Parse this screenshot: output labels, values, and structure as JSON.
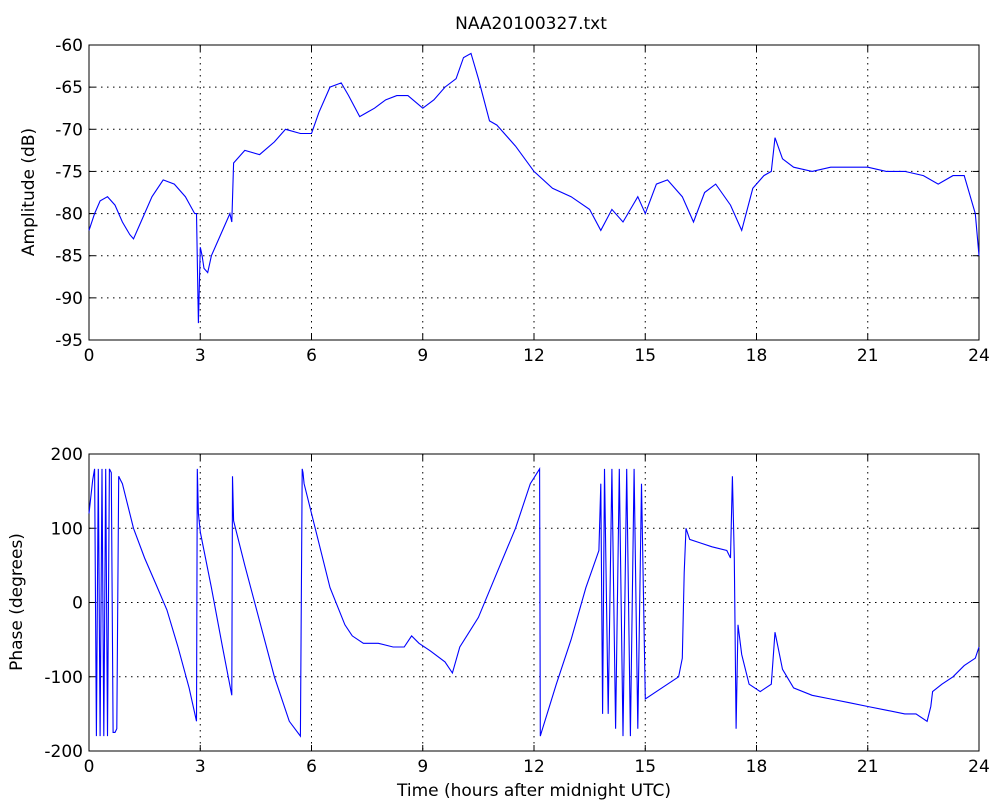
{
  "title": "NAA20100327.txt",
  "chart_data": [
    {
      "type": "line",
      "title": "NAA20100327.txt",
      "xlabel": "",
      "ylabel": "Amplitude (dB)",
      "xlim": [
        0,
        24
      ],
      "ylim": [
        -95,
        -60
      ],
      "xticks": [
        0,
        3,
        6,
        9,
        12,
        15,
        18,
        21,
        24
      ],
      "yticks": [
        -95,
        -90,
        -85,
        -80,
        -75,
        -70,
        -65,
        -60
      ],
      "grid": true,
      "series": [
        {
          "color": "#0000ff",
          "x": [
            0,
            0.15,
            0.3,
            0.5,
            0.7,
            0.9,
            1.1,
            1.2,
            1.4,
            1.7,
            2.0,
            2.3,
            2.6,
            2.85,
            2.9,
            2.95,
            3.0,
            3.05,
            3.1,
            3.2,
            3.3,
            3.5,
            3.8,
            3.85,
            3.9,
            4.2,
            4.6,
            5.0,
            5.3,
            5.7,
            6.0,
            6.2,
            6.5,
            6.8,
            7.0,
            7.3,
            7.5,
            7.7,
            8.0,
            8.3,
            8.6,
            9.0,
            9.3,
            9.6,
            9.9,
            10.1,
            10.3,
            10.5,
            10.8,
            11.0,
            11.5,
            12.0,
            12.5,
            13.0,
            13.5,
            13.8,
            14.1,
            14.4,
            14.8,
            15.0,
            15.3,
            15.6,
            16.0,
            16.3,
            16.6,
            16.9,
            17.3,
            17.6,
            17.9,
            18.2,
            18.4,
            18.5,
            18.7,
            19.0,
            19.5,
            20.0,
            20.5,
            21.0,
            21.5,
            22.0,
            22.5,
            22.9,
            23.3,
            23.6,
            23.9,
            24.0
          ],
          "y": [
            -82,
            -80,
            -78.5,
            -78,
            -79,
            -81,
            -82.5,
            -83,
            -81,
            -78,
            -76,
            -76.5,
            -78,
            -80,
            -80,
            -93,
            -84,
            -85,
            -86.5,
            -87,
            -85,
            -83,
            -80,
            -81,
            -74,
            -72.5,
            -73,
            -71.5,
            -70,
            -70.5,
            -70.5,
            -68,
            -65,
            -64.5,
            -66,
            -68.5,
            -68,
            -67.5,
            -66.5,
            -66,
            -66,
            -67.5,
            -66.5,
            -65,
            -64,
            -61.5,
            -61,
            -64,
            -69,
            -69.5,
            -72,
            -75,
            -77,
            -78,
            -79.5,
            -82,
            -79.5,
            -81,
            -78,
            -80,
            -76.5,
            -76,
            -78,
            -81,
            -77.5,
            -76.5,
            -79,
            -82,
            -77,
            -75.5,
            -75,
            -71,
            -73.5,
            -74.5,
            -75,
            -74.5,
            -74.5,
            -74.5,
            -75,
            -75,
            -75.5,
            -76.5,
            -75.5,
            -75.5,
            -80,
            -85
          ]
        }
      ]
    },
    {
      "type": "line",
      "title": "",
      "xlabel": "Time (hours after midnight UTC)",
      "ylabel": "Phase (degrees)",
      "xlim": [
        0,
        24
      ],
      "ylim": [
        -200,
        200
      ],
      "xticks": [
        0,
        3,
        6,
        9,
        12,
        15,
        18,
        21,
        24
      ],
      "yticks": [
        -200,
        -100,
        0,
        100,
        200
      ],
      "grid": true,
      "series": [
        {
          "color": "#0000ff",
          "x": [
            0,
            0.1,
            0.15,
            0.2,
            0.25,
            0.3,
            0.35,
            0.4,
            0.45,
            0.5,
            0.55,
            0.6,
            0.65,
            0.7,
            0.75,
            0.8,
            0.85,
            0.9,
            1.0,
            1.2,
            1.5,
            1.8,
            2.1,
            2.4,
            2.7,
            2.9,
            2.92,
            2.95,
            3.0,
            3.3,
            3.6,
            3.85,
            3.87,
            3.9,
            4.2,
            4.6,
            5.0,
            5.4,
            5.7,
            5.75,
            5.77,
            5.8,
            6.1,
            6.5,
            6.9,
            7.1,
            7.4,
            7.8,
            8.2,
            8.5,
            8.7,
            8.9,
            9.2,
            9.6,
            9.8,
            10.0,
            10.5,
            11.0,
            11.5,
            11.9,
            12.15,
            12.17,
            12.2,
            12.6,
            13.0,
            13.4,
            13.75,
            13.8,
            13.85,
            13.9,
            14.0,
            14.1,
            14.2,
            14.3,
            14.4,
            14.5,
            14.6,
            14.7,
            14.8,
            14.9,
            15.0,
            15.3,
            15.6,
            15.9,
            16.0,
            16.05,
            16.1,
            16.2,
            16.5,
            16.8,
            17.2,
            17.3,
            17.35,
            17.4,
            17.45,
            17.5,
            17.6,
            17.8,
            18.1,
            18.4,
            18.5,
            18.7,
            19.0,
            19.5,
            20.0,
            20.5,
            21.0,
            21.5,
            22.0,
            22.3,
            22.6,
            22.7,
            22.75,
            23.0,
            23.3,
            23.6,
            23.9,
            24.0
          ],
          "y": [
            120,
            165,
            180,
            -180,
            180,
            -180,
            180,
            -180,
            180,
            -180,
            180,
            175,
            -175,
            -175,
            -170,
            170,
            165,
            160,
            140,
            100,
            60,
            25,
            -10,
            -60,
            -115,
            -160,
            180,
            120,
            95,
            20,
            -60,
            -125,
            170,
            110,
            50,
            -25,
            -100,
            -160,
            -180,
            180,
            175,
            160,
            100,
            20,
            -30,
            -45,
            -55,
            -55,
            -60,
            -60,
            -45,
            -55,
            -65,
            -80,
            -95,
            -60,
            -20,
            40,
            100,
            160,
            180,
            -180,
            -175,
            -110,
            -50,
            20,
            70,
            160,
            -150,
            180,
            -150,
            180,
            -170,
            180,
            -180,
            180,
            -180,
            180,
            -170,
            160,
            -130,
            -120,
            -110,
            -100,
            -75,
            40,
            100,
            85,
            80,
            75,
            70,
            60,
            170,
            60,
            -170,
            -30,
            -70,
            -110,
            -120,
            -110,
            -40,
            -90,
            -115,
            -125,
            -130,
            -135,
            -140,
            -145,
            -150,
            -150,
            -160,
            -140,
            -120,
            -110,
            -100,
            -85,
            -75,
            -60
          ]
        }
      ]
    }
  ]
}
